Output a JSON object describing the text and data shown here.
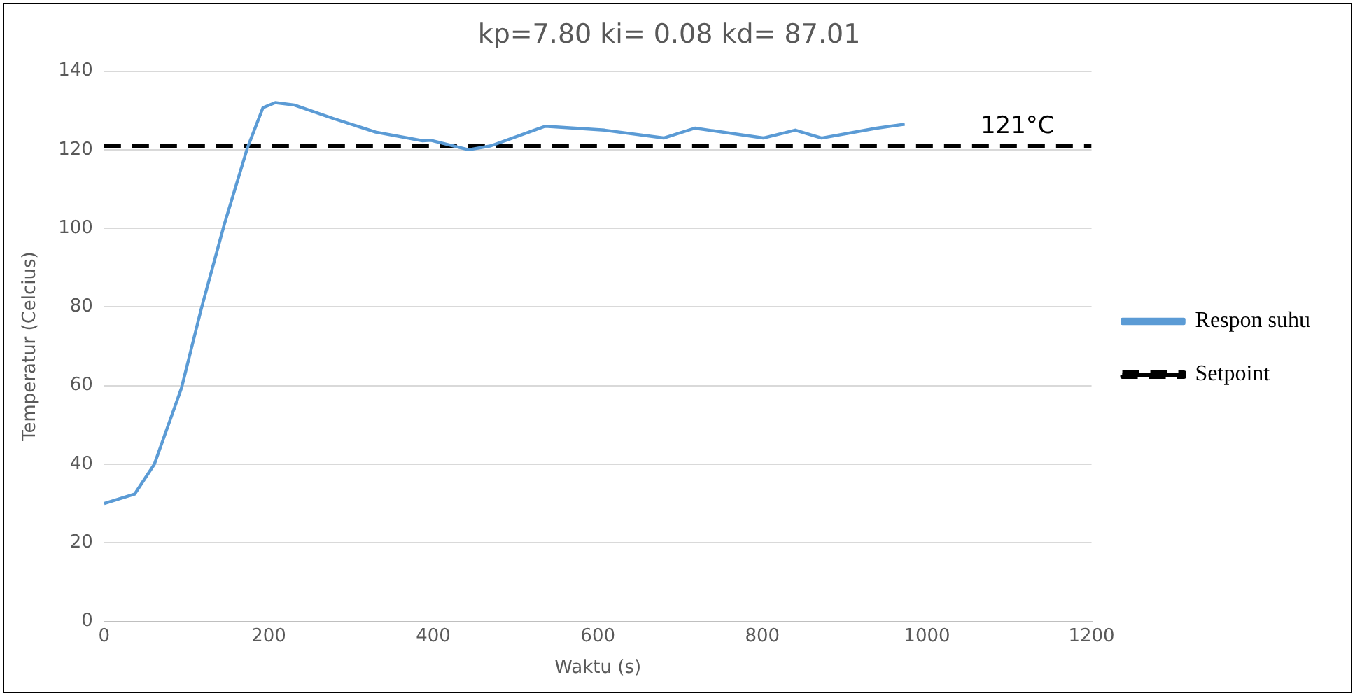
{
  "chart_data": {
    "type": "line",
    "title": "kp=7.80 ki= 0.08 kd= 87.01",
    "xlabel": "Waktu (s)",
    "ylabel": "Temperatur (Celcius)",
    "xlim": [
      0,
      1200
    ],
    "xticks": [
      0,
      200,
      400,
      600,
      800,
      1000,
      1200
    ],
    "ylim": [
      0,
      140
    ],
    "yticks": [
      0,
      20,
      40,
      60,
      80,
      100,
      120,
      140
    ],
    "grid": "y",
    "legend": "right",
    "marker": "none",
    "series": [
      {
        "name": "Respon suhu",
        "color": "#5b9bd5",
        "line_style": "solid",
        "x": [
          0,
          37,
          61,
          94,
          118,
          146,
          174,
          193,
          208,
          231,
          278,
          330,
          387,
          397,
          443,
          470,
          536,
          608,
          680,
          718,
          801,
          840,
          872,
          939,
          973
        ],
        "values": [
          30,
          32.4,
          40,
          59.4,
          79.5,
          101,
          120.4,
          130.7,
          132,
          131.4,
          128,
          124.5,
          122.3,
          122.4,
          120,
          121,
          126,
          125,
          123,
          125.5,
          123,
          125,
          123,
          125.5,
          126.5
        ]
      },
      {
        "name": "Setpoint",
        "color": "#000000",
        "line_style": "dashed",
        "x": [
          0,
          1200
        ],
        "values": [
          121,
          121
        ]
      }
    ],
    "annotations": [
      {
        "text": "121°C",
        "x": 1110,
        "y": 121
      }
    ]
  }
}
